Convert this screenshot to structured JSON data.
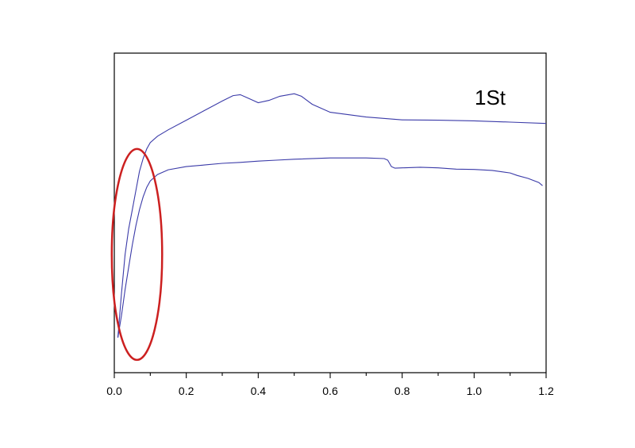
{
  "chart_data": {
    "type": "line",
    "xlim": [
      0,
      1.2
    ],
    "x_ticks": [
      "0.0",
      "0.2",
      "0.4",
      "0.6",
      "0.8",
      "1.0",
      "1.2"
    ],
    "y_ticks": [],
    "grid": false,
    "annotation": "1St",
    "highlight": {
      "shape": "ellipse",
      "color": "#cc2020",
      "cx": 0.063,
      "cy": 0.37,
      "rx": 0.07,
      "ry": 0.33
    },
    "series": [
      {
        "color": "#3a3aa8",
        "x": [
          0.01,
          0.02,
          0.03,
          0.04,
          0.05,
          0.06,
          0.07,
          0.08,
          0.09,
          0.1,
          0.12,
          0.15,
          0.2,
          0.25,
          0.3,
          0.33,
          0.35,
          0.37,
          0.4,
          0.43,
          0.46,
          0.5,
          0.52,
          0.55,
          0.6,
          0.7,
          0.8,
          0.9,
          1.0,
          1.1,
          1.2
        ],
        "y": [
          0.11,
          0.25,
          0.37,
          0.45,
          0.51,
          0.57,
          0.63,
          0.67,
          0.7,
          0.72,
          0.74,
          0.76,
          0.79,
          0.82,
          0.85,
          0.867,
          0.87,
          0.86,
          0.845,
          0.852,
          0.865,
          0.873,
          0.865,
          0.84,
          0.815,
          0.8,
          0.791,
          0.79,
          0.788,
          0.784,
          0.78
        ]
      },
      {
        "color": "#3a3aa8",
        "x": [
          0.01,
          0.02,
          0.03,
          0.04,
          0.05,
          0.06,
          0.07,
          0.08,
          0.09,
          0.1,
          0.12,
          0.15,
          0.2,
          0.25,
          0.3,
          0.35,
          0.4,
          0.45,
          0.5,
          0.6,
          0.7,
          0.75,
          0.76,
          0.77,
          0.78,
          0.8,
          0.85,
          0.9,
          0.95,
          1.0,
          1.05,
          1.1,
          1.12,
          1.15,
          1.18,
          1.19
        ],
        "y": [
          0.11,
          0.18,
          0.26,
          0.33,
          0.4,
          0.46,
          0.51,
          0.55,
          0.58,
          0.6,
          0.62,
          0.635,
          0.645,
          0.65,
          0.655,
          0.658,
          0.662,
          0.665,
          0.668,
          0.672,
          0.672,
          0.67,
          0.665,
          0.645,
          0.64,
          0.641,
          0.643,
          0.641,
          0.637,
          0.636,
          0.633,
          0.625,
          0.617,
          0.608,
          0.595,
          0.585
        ]
      }
    ]
  }
}
